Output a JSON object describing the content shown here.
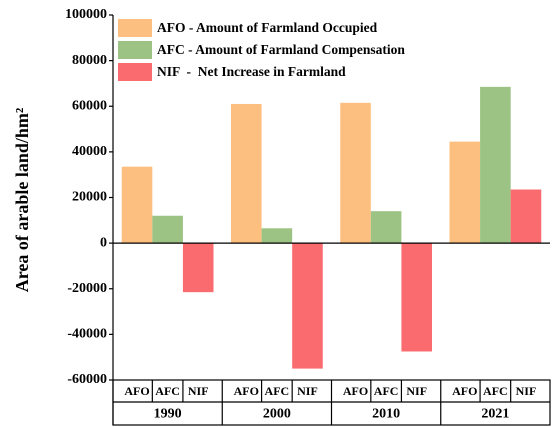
{
  "chart_data": {
    "type": "bar",
    "ylabel": "Area of arable land/hm²",
    "categories": [
      "1990",
      "2000",
      "2010",
      "2021"
    ],
    "bar_labels": [
      "AFO",
      "AFC",
      "NIF"
    ],
    "series": [
      {
        "name": "AFO - Amount of Farmland Occupied",
        "color": "#fdbf80",
        "values": [
          33500,
          61000,
          61500,
          44500
        ]
      },
      {
        "name": "AFC - Amount of Farmland Compensation",
        "color": "#9dc384",
        "values": [
          12000,
          6500,
          14000,
          68500
        ]
      },
      {
        "name": "NIF  -  Net Increase in Farmland",
        "color": "#fa6b6f",
        "values": [
          -21500,
          -55000,
          -47500,
          23500
        ]
      }
    ],
    "ylim": [
      -60000,
      100000
    ],
    "yticks": [
      -60000,
      -40000,
      -20000,
      0,
      20000,
      40000,
      60000,
      80000,
      100000
    ],
    "legend": "upper left"
  }
}
